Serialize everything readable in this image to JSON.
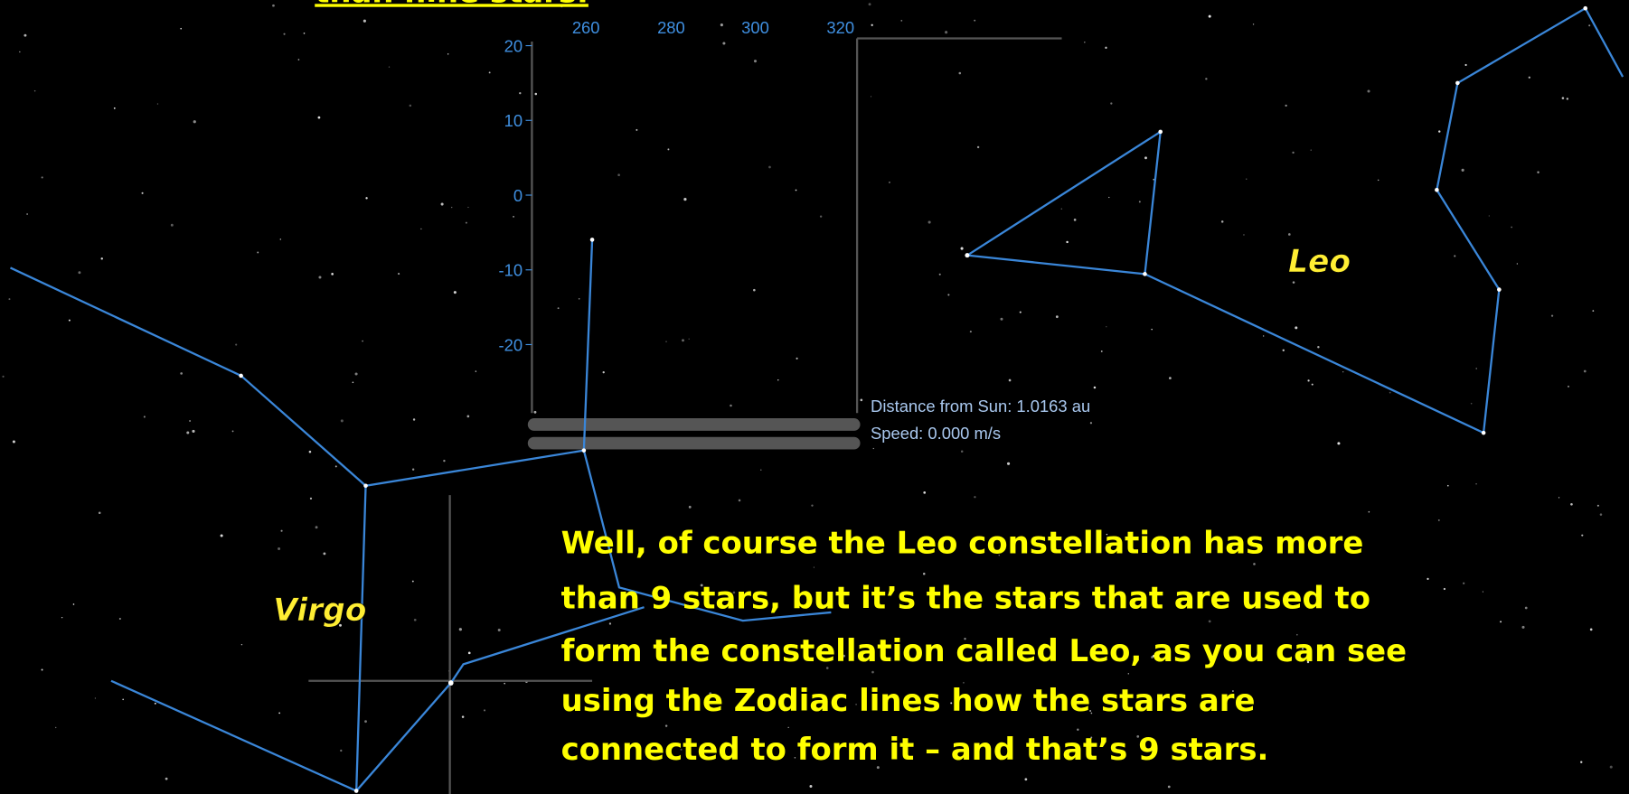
{
  "slide": {
    "top_text": "than nine stars.",
    "graph": {
      "x_labels": [
        "260",
        "280",
        "300",
        "320"
      ],
      "y_labels": [
        "20",
        "10",
        "0",
        "-10",
        "-20"
      ]
    },
    "info": {
      "distance": "Distance from Sun: 1.0163 au",
      "speed": "Speed: 0.000 m/s"
    },
    "constellations": {
      "leo": "Leo",
      "virgo": "Virgo"
    },
    "paragraph": [
      "Well, of course the Leo constellation has more",
      "than 9 stars, but it’s the stars that are used to",
      "form the constellation called Leo, as you can see",
      "using the Zodiac lines how the stars are",
      "connected to form it – and that’s 9 stars."
    ]
  }
}
